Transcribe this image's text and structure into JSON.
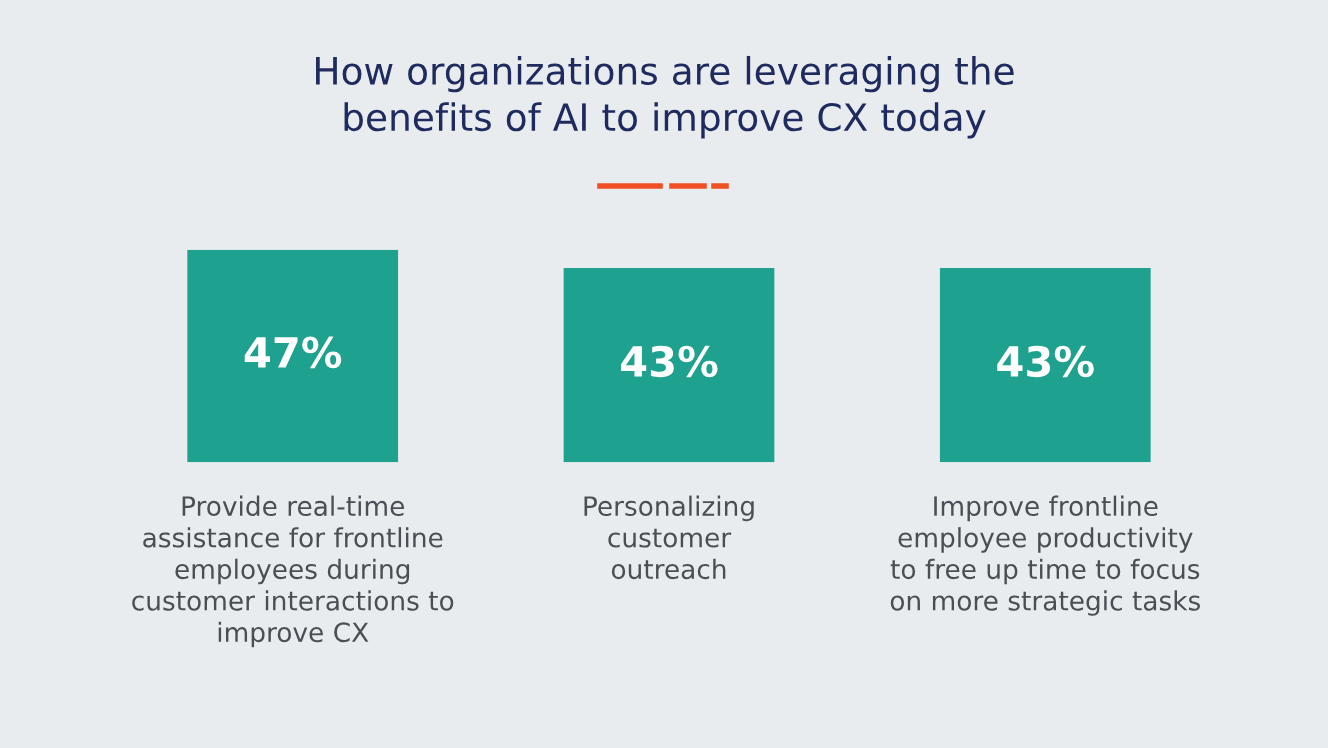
{
  "chart_data": {
    "type": "bar",
    "title": "How organizations are leveraging the\nbenefits of AI to improve CX today",
    "categories": [
      "Provide real-time\nassistance for frontline\nemployees during\ncustomer interactions to\nimprove CX",
      "Personalizing\ncustomer\noutreach",
      "Improve frontline\nemployee productivity\nto free up time to focus\non more strategic tasks"
    ],
    "values": [
      47,
      43,
      43
    ],
    "value_labels": [
      "47%",
      "43%",
      "43%"
    ],
    "color": "#1fa18f"
  }
}
